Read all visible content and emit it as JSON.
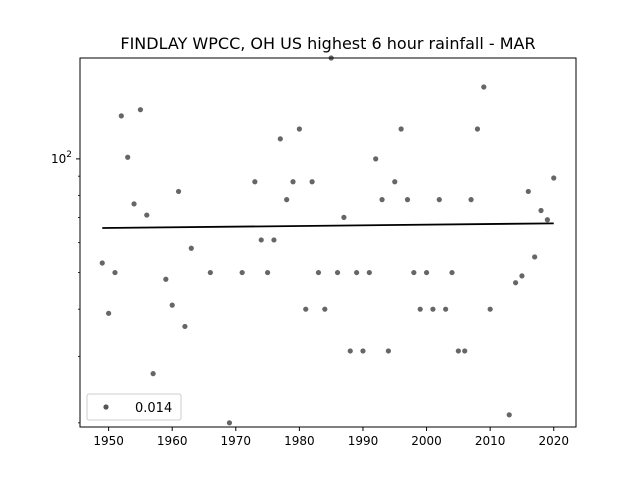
{
  "chart_data": {
    "type": "scatter",
    "title": "FINDLAY WPCC, OH US highest 6 hour rainfall - MAR",
    "xlabel": "",
    "ylabel": "",
    "y_scale": "log",
    "xlim": [
      1945.5,
      2023.5
    ],
    "ylim": [
      19.5,
      185
    ],
    "x_ticks": [
      1950,
      1960,
      1970,
      1980,
      1990,
      2000,
      2010,
      2020
    ],
    "x_tick_labels": [
      "1950",
      "1960",
      "1970",
      "1980",
      "1990",
      "2000",
      "2010",
      "2020"
    ],
    "y_ticks": [
      100
    ],
    "y_tick_labels": [
      "10",
      "2"
    ],
    "grid": false,
    "legend_position": "lower-left",
    "legend_label": "0.014",
    "point_color": "#555555",
    "trend_color": "#000000",
    "x": [
      1949,
      1950,
      1951,
      1952,
      1953,
      1954,
      1955,
      1956,
      1957,
      1959,
      1960,
      1961,
      1962,
      1963,
      1966,
      1969,
      1971,
      1973,
      1974,
      1975,
      1976,
      1977,
      1978,
      1979,
      1980,
      1981,
      1982,
      1983,
      1984,
      1985,
      1986,
      1987,
      1988,
      1989,
      1990,
      1991,
      1992,
      1993,
      1994,
      1995,
      1996,
      1997,
      1998,
      1999,
      2000,
      2001,
      2002,
      2003,
      2004,
      2005,
      2006,
      2007,
      2008,
      2009,
      2010,
      2013,
      2014,
      2015,
      2016,
      2017,
      2018,
      2019,
      2020
    ],
    "y": [
      53,
      39,
      50,
      130,
      101,
      76,
      135,
      71,
      27,
      48,
      41,
      82,
      36,
      58,
      50,
      20,
      50,
      87,
      61,
      50,
      61,
      113,
      78,
      87,
      120,
      40,
      87,
      50,
      40,
      185,
      50,
      70,
      31,
      50,
      31,
      50,
      100,
      78,
      31,
      87,
      120,
      78,
      50,
      40,
      50,
      40,
      78,
      40,
      50,
      31,
      31,
      78,
      120,
      155,
      40,
      21,
      47,
      49,
      82,
      55,
      73,
      69,
      89
    ],
    "trend": {
      "x": [
        1949,
        2020
      ],
      "y": [
        65.6,
        67.5
      ]
    }
  }
}
